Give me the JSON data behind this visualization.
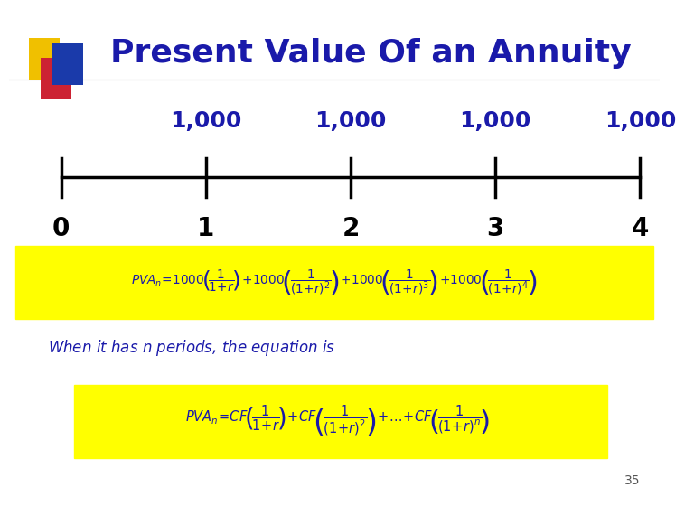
{
  "title": "Present Value Of an Annuity",
  "title_color": "#1a1aaa",
  "title_fontsize": 26,
  "bg_color": "#ffffff",
  "tick_labels": [
    "0",
    "1",
    "2",
    "3",
    "4"
  ],
  "cashflow_labels": [
    "1,000",
    "1,000",
    "1,000",
    "1,000"
  ],
  "cashflow_color": "#1a1aaa",
  "cashflow_fontsize": 18,
  "tick_label_color": "#000000",
  "tick_label_fontsize": 20,
  "eq_color": "#1a1aaa",
  "eq_bg_color": "#ffff00",
  "when_fontsize": 12,
  "when_color": "#1a1aaa",
  "slide_number": "35",
  "yellow_sq": "#f0c000",
  "red_sq": "#cc2233",
  "blue_sq": "#1a3aaa"
}
